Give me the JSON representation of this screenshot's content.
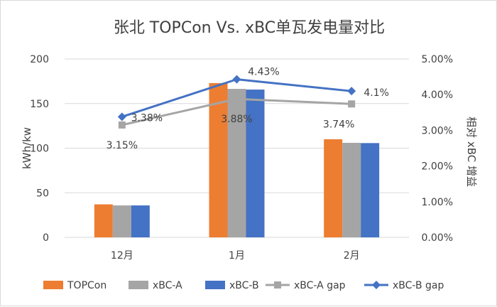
{
  "chart_data": {
    "type": "bar",
    "title": "张北 TOPCon Vs. xBC单瓦发电量对比",
    "ylabel": "kWh/kw",
    "y2label": "相对 xBC 增益",
    "categories": [
      "12月",
      "1月",
      "2月"
    ],
    "ylim": [
      0,
      200
    ],
    "yticks": [
      "0",
      "50",
      "100",
      "150",
      "200"
    ],
    "y2lim": [
      0,
      5
    ],
    "y2ticks": [
      "0.00%",
      "1.00%",
      "2.00%",
      "3.00%",
      "4.00%",
      "5.00%"
    ],
    "grid": true,
    "legend_position": "bottom",
    "series": [
      {
        "name": "TOPCon",
        "type": "bar",
        "color": "#ED7D31",
        "values": [
          37,
          173,
          110
        ]
      },
      {
        "name": "xBC-A",
        "type": "bar",
        "color": "#A5A5A5",
        "values": [
          35.8,
          166.5,
          106
        ]
      },
      {
        "name": "xBC-B",
        "type": "bar",
        "color": "#4472C4",
        "values": [
          35.8,
          165.7,
          105.7
        ]
      },
      {
        "name": "xBC-A gap",
        "type": "line",
        "axis": "right",
        "color": "#A5A5A5",
        "marker": "square",
        "values": [
          3.15,
          3.88,
          3.74
        ],
        "labels": [
          "3.15%",
          "3.88%",
          "3.74%"
        ]
      },
      {
        "name": "xBC-B gap",
        "type": "line",
        "axis": "right",
        "color": "#4472C4",
        "marker": "diamond",
        "values": [
          3.38,
          4.43,
          4.1
        ],
        "labels": [
          "3.38%",
          "4.43%",
          "4.1%"
        ]
      }
    ]
  }
}
